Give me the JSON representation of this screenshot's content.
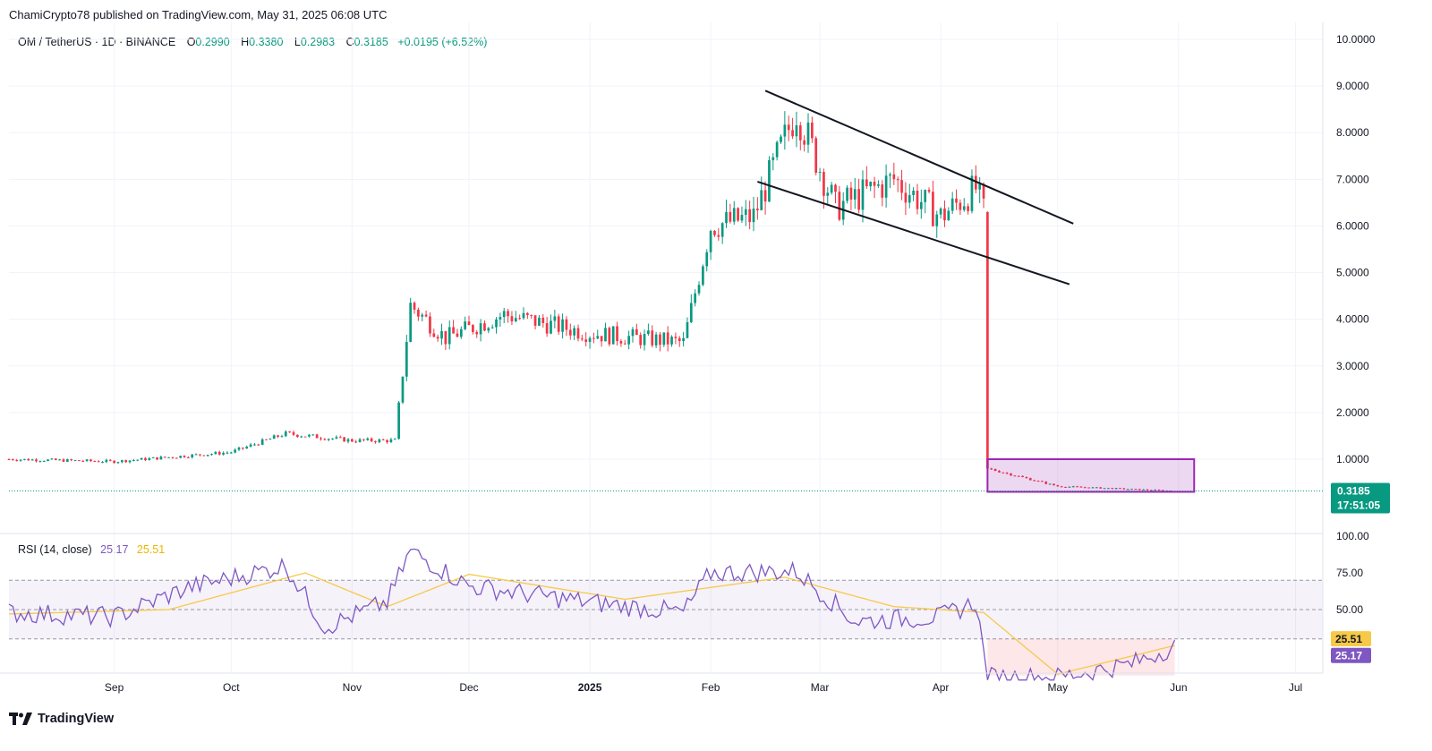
{
  "header": {
    "published": "ChamiCrypto78 published on TradingView.com, May 31, 2025 06:08 UTC",
    "symbol": "OM / TetherUS · 1D · BINANCE",
    "o_label": "O",
    "o_value": "0.2990",
    "h_label": "H",
    "h_value": "0.3380",
    "l_label": "L",
    "l_value": "0.2983",
    "c_label": "C",
    "c_value": "0.3185",
    "change": "+0.0195 (+6.52%)"
  },
  "rsi_legend": {
    "name": "RSI (14, close)",
    "rsi_value": "25.17",
    "ma_value": "25.51"
  },
  "price_tag": {
    "value": "0.3185",
    "countdown": "17:51:05"
  },
  "rsi_tags": {
    "ma": "25.51",
    "rsi": "25.17"
  },
  "footer": {
    "brand": "TradingView"
  },
  "colors": {
    "up": "#089981",
    "down": "#f23645",
    "rsi": "#7e57c2",
    "rsi_ma": "#f7c948",
    "box": "#9c27b0"
  },
  "chart_data": [
    {
      "type": "candlestick",
      "title": "OM / TetherUS · 1D · BINANCE",
      "price_axis_labels": [
        "10.0000",
        "9.0000",
        "8.0000",
        "7.0000",
        "6.0000",
        "5.0000",
        "4.0000",
        "3.0000",
        "2.0000",
        "1.0000"
      ],
      "time_axis_labels": [
        "Sep",
        "Oct",
        "Nov",
        "Dec",
        "2025",
        "Feb",
        "Mar",
        "Apr",
        "May",
        "Jun",
        "Jul"
      ],
      "x_range": [
        "2024-08-05",
        "2025-07-08"
      ],
      "ylim": [
        -0.5,
        10.3
      ],
      "closes_approx": [
        [
          "2024-08-05",
          1.0
        ],
        [
          "2024-09-01",
          0.95
        ],
        [
          "2024-10-01",
          1.15
        ],
        [
          "2024-10-15",
          1.55
        ],
        [
          "2024-11-01",
          1.4
        ],
        [
          "2024-11-12",
          1.4
        ],
        [
          "2024-11-16",
          4.3
        ],
        [
          "2024-11-25",
          3.6
        ],
        [
          "2024-12-10",
          4.1
        ],
        [
          "2025-01-01",
          3.7
        ],
        [
          "2025-01-25",
          3.5
        ],
        [
          "2025-02-01",
          6.0
        ],
        [
          "2025-02-12",
          6.2
        ],
        [
          "2025-02-23",
          8.5
        ],
        [
          "2025-03-05",
          6.4
        ],
        [
          "2025-03-20",
          7.0
        ],
        [
          "2025-04-01",
          6.2
        ],
        [
          "2025-04-10",
          6.8
        ],
        [
          "2025-04-12",
          6.3
        ],
        [
          "2025-04-13",
          0.8
        ],
        [
          "2025-05-01",
          0.42
        ],
        [
          "2025-05-31",
          0.3185
        ]
      ],
      "annotations": [
        {
          "type": "trendline",
          "points": [
            [
              "2025-02-15",
              8.9
            ],
            [
              "2025-05-05",
              6.05
            ]
          ]
        },
        {
          "type": "trendline",
          "points": [
            [
              "2025-02-13",
              6.95
            ],
            [
              "2025-05-04",
              4.75
            ]
          ]
        },
        {
          "type": "rectangle",
          "points": [
            [
              "2025-04-13",
              1.0
            ],
            [
              "2025-06-05",
              0.3
            ]
          ]
        }
      ],
      "last_price": 0.3185
    },
    {
      "type": "line",
      "title": "RSI (14, close)",
      "axis_labels": [
        "100.00",
        "75.00",
        "50.00"
      ],
      "ylim": [
        0,
        100
      ],
      "bands": [
        30,
        50,
        70
      ],
      "series": [
        {
          "name": "RSI",
          "values_approx": [
            [
              "2024-08-05",
              48
            ],
            [
              "2024-09-01",
              45
            ],
            [
              "2024-09-20",
              65
            ],
            [
              "2024-10-15",
              80
            ],
            [
              "2024-10-25",
              38
            ],
            [
              "2024-11-10",
              55
            ],
            [
              "2024-11-16",
              90
            ],
            [
              "2024-12-01",
              66
            ],
            [
              "2025-01-01",
              55
            ],
            [
              "2025-01-25",
              48
            ],
            [
              "2025-02-01",
              75
            ],
            [
              "2025-02-23",
              76
            ],
            [
              "2025-03-10",
              42
            ],
            [
              "2025-04-01",
              45
            ],
            [
              "2025-04-10",
              55
            ],
            [
              "2025-04-13",
              4
            ],
            [
              "2025-05-01",
              4
            ],
            [
              "2025-05-20",
              13
            ],
            [
              "2025-05-31",
              25.17
            ]
          ]
        },
        {
          "name": "RSI-based MA",
          "values_approx": [
            [
              "2024-08-05",
              47
            ],
            [
              "2024-09-15",
              50
            ],
            [
              "2024-10-20",
              75
            ],
            [
              "2024-11-10",
              52
            ],
            [
              "2024-12-01",
              74
            ],
            [
              "2025-01-10",
              57
            ],
            [
              "2025-02-20",
              72
            ],
            [
              "2025-03-20",
              52
            ],
            [
              "2025-04-12",
              48
            ],
            [
              "2025-05-01",
              6
            ],
            [
              "2025-05-31",
              25.51
            ]
          ]
        }
      ]
    }
  ]
}
